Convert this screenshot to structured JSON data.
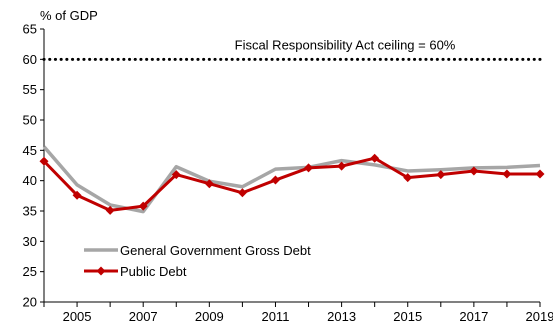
{
  "chart_data": {
    "type": "line",
    "y_unit_label": "% of GDP",
    "x": [
      2004,
      2005,
      2006,
      2007,
      2008,
      2009,
      2010,
      2011,
      2012,
      2013,
      2014,
      2015,
      2016,
      2017,
      2018,
      2019
    ],
    "x_ticks": [
      "2005",
      "2007",
      "2009",
      "2011",
      "2013",
      "2015",
      "2017",
      "2019"
    ],
    "y_ticks": [
      "20",
      "25",
      "30",
      "35",
      "40",
      "45",
      "50",
      "55",
      "60",
      "65"
    ],
    "xlim": [
      2004,
      2019
    ],
    "ylim": [
      20,
      65
    ],
    "reference_line": {
      "value": 60,
      "label": "Fiscal Responsibility Act ceiling = 60%",
      "style": "dotted"
    },
    "series": [
      {
        "name": "General Government Gross Debt",
        "color": "#A6A6A6",
        "marker": "none",
        "values": [
          45.6,
          39.3,
          36.0,
          34.9,
          42.3,
          39.9,
          39.0,
          41.9,
          42.2,
          43.3,
          42.6,
          41.6,
          41.8,
          42.1,
          42.2,
          42.5
        ]
      },
      {
        "name": "Public Debt",
        "color": "#C00000",
        "marker": "diamond",
        "values": [
          43.2,
          37.6,
          35.1,
          35.8,
          41.0,
          39.5,
          38.0,
          40.1,
          42.1,
          42.4,
          43.7,
          40.5,
          41.0,
          41.6,
          41.1,
          41.1
        ]
      }
    ],
    "legend": {
      "placement": "bottom-left"
    },
    "grid": false
  }
}
